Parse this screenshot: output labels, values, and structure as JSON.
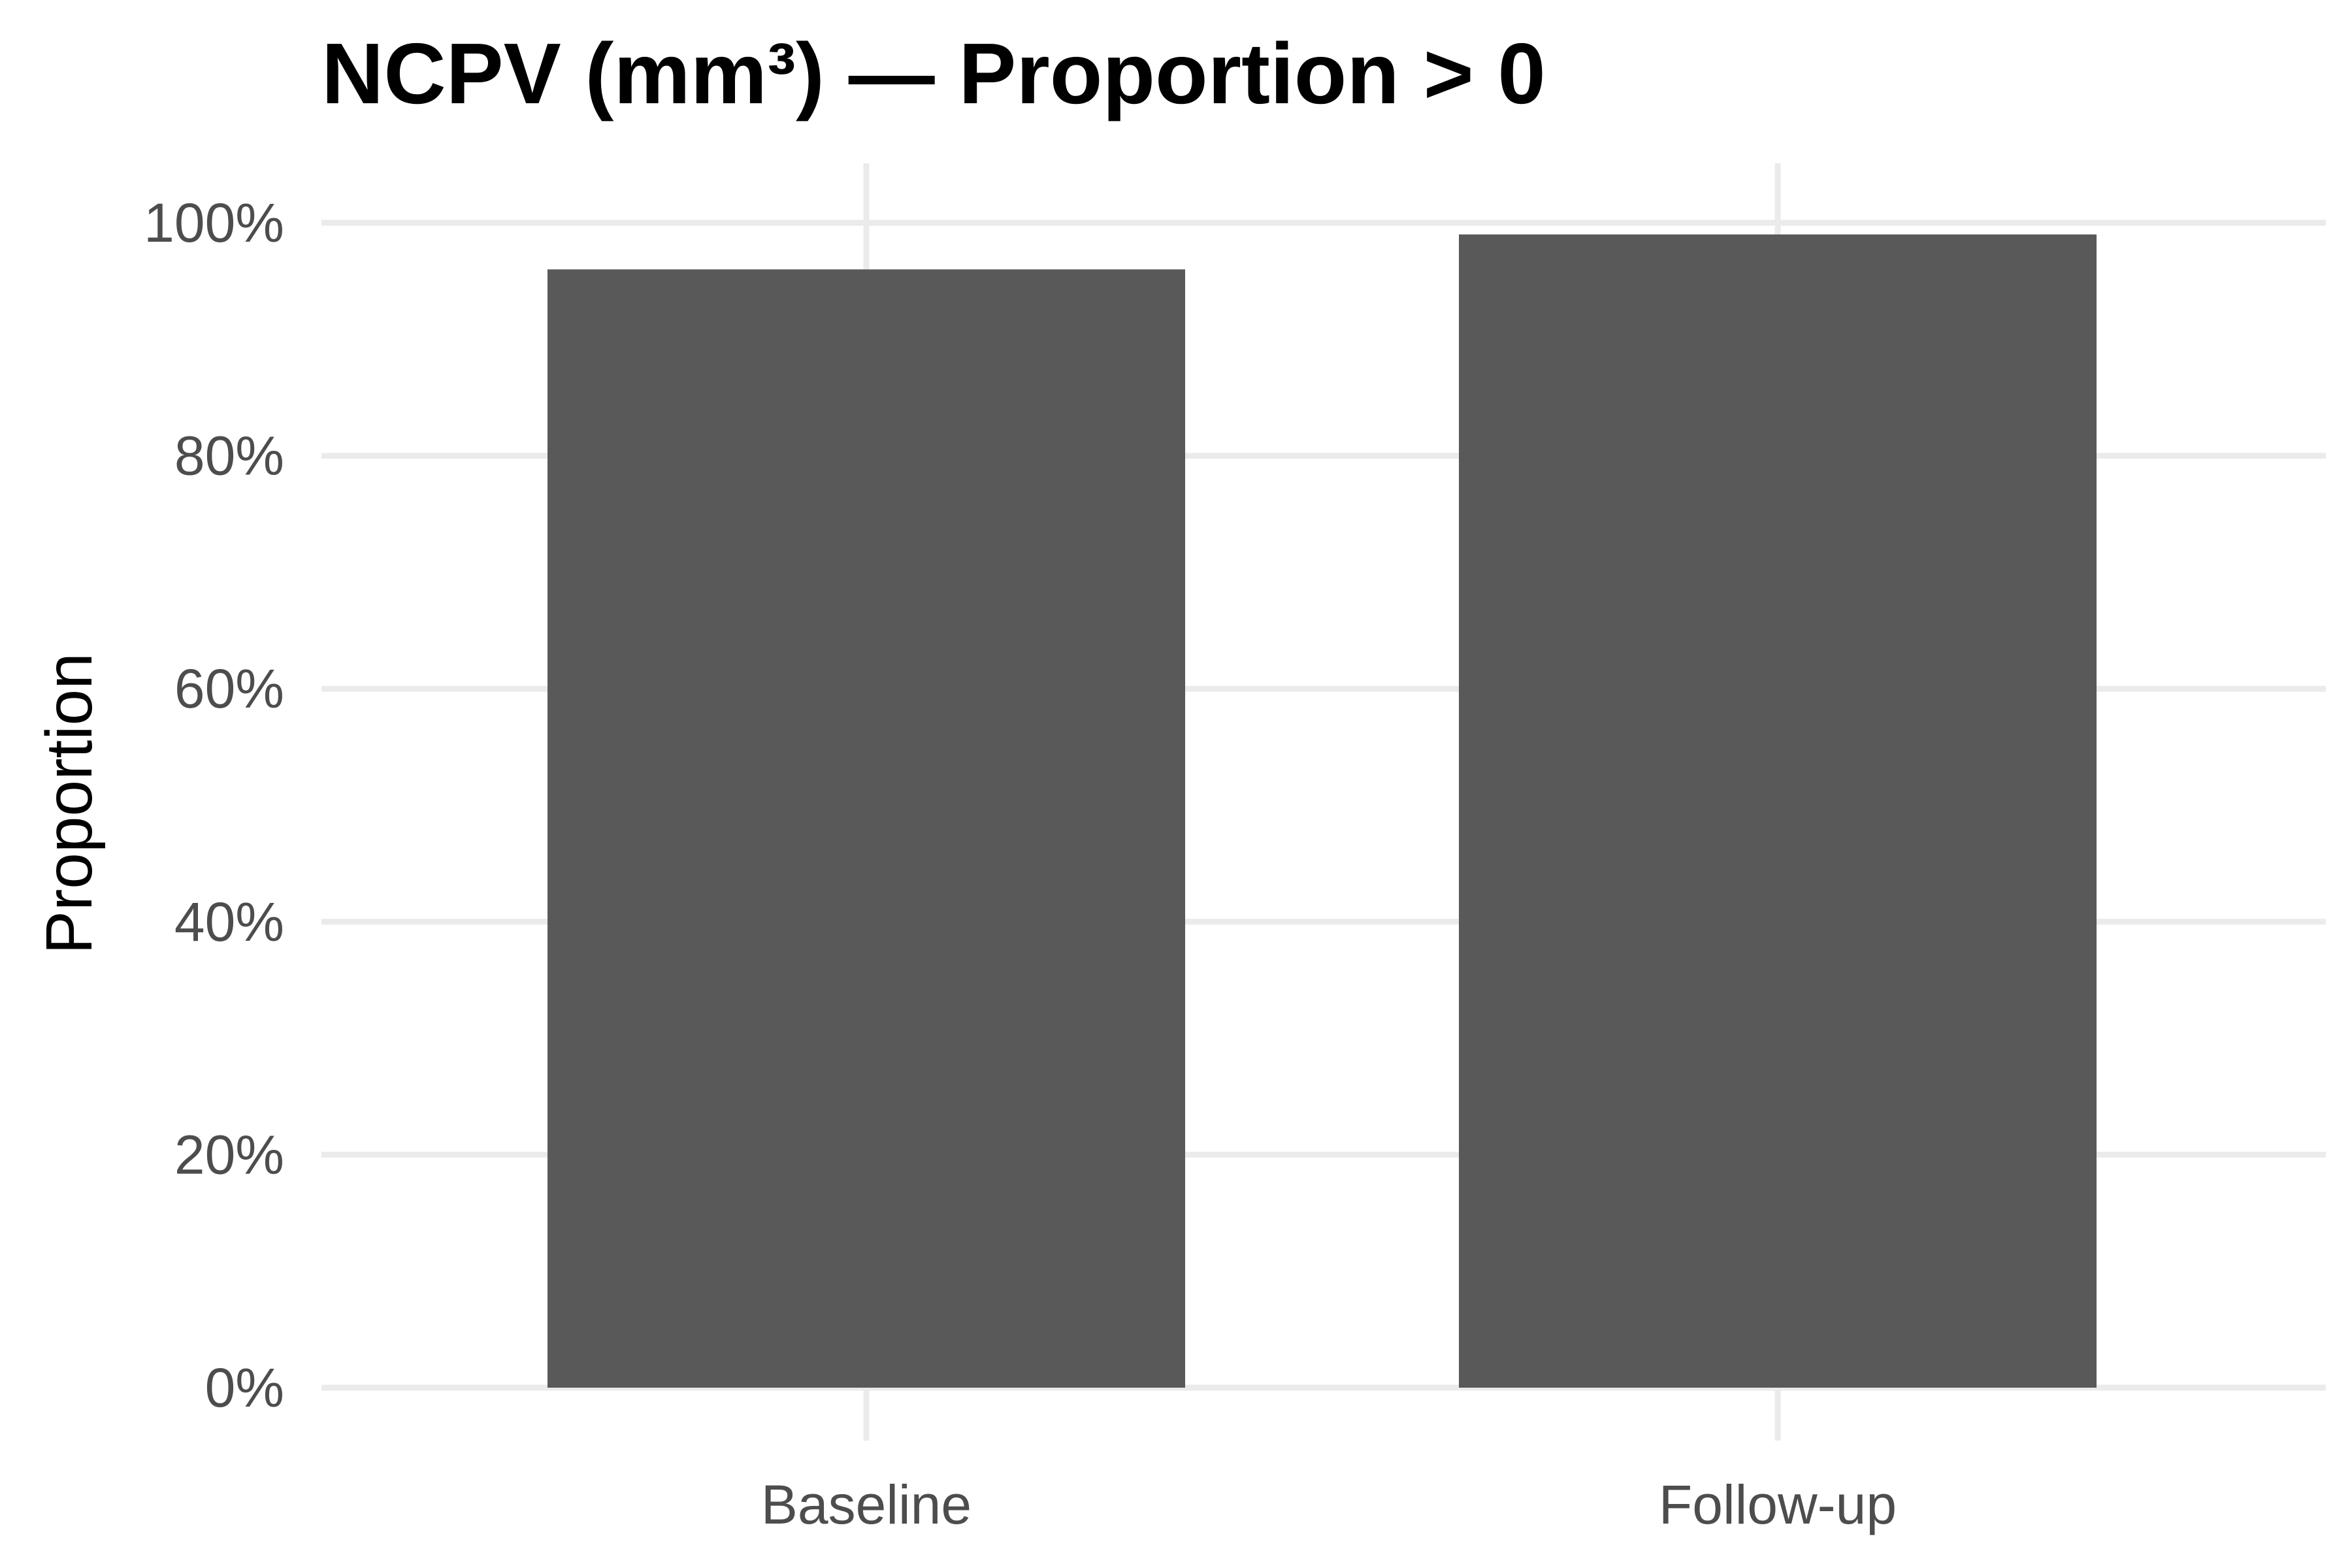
{
  "chart_data": {
    "type": "bar",
    "title": "NCPV (mm³) — Proportion > 0",
    "xlabel": "",
    "ylabel": "Proportion",
    "categories": [
      "Baseline",
      "Follow-up"
    ],
    "values": [
      0.96,
      0.99
    ],
    "ylim": [
      0,
      1
    ],
    "yticks": [
      0,
      0.2,
      0.4,
      0.6,
      0.8,
      1.0
    ],
    "ytick_labels": [
      "0%",
      "20%",
      "40%",
      "60%",
      "80%",
      "100%"
    ],
    "grid": true,
    "legend": "none",
    "colors": {
      "bar": "#595959",
      "grid": "#ebebeb",
      "tick_text": "#4d4d4d",
      "title": "#000000",
      "background": "#ffffff"
    }
  }
}
